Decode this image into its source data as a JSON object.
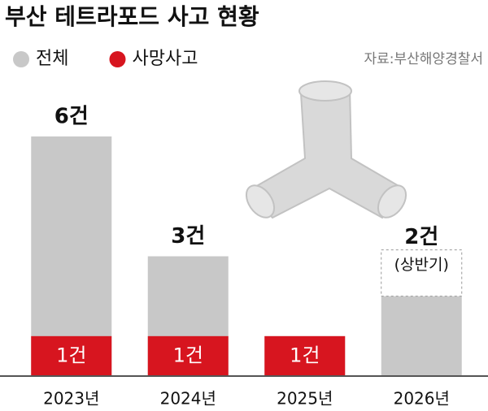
{
  "chart_data": {
    "type": "bar",
    "title": "부산 테트라포드 사고 현황",
    "source": "자료:부산해양경찰서",
    "categories": [
      "2023년",
      "2024년",
      "2025년",
      "2026년"
    ],
    "series": [
      {
        "name": "전체",
        "color": "#c8c8c8",
        "values": [
          6,
          3,
          1,
          2
        ],
        "value_labels": [
          "6건",
          "3건",
          null,
          "2건"
        ]
      },
      {
        "name": "사망사고",
        "color": "#d7151f",
        "values": [
          1,
          1,
          1,
          null
        ],
        "value_labels": [
          "1건",
          "1건",
          "1건",
          null
        ]
      }
    ],
    "annotations": [
      "(상반기)"
    ],
    "ylim": [
      0,
      6
    ]
  }
}
